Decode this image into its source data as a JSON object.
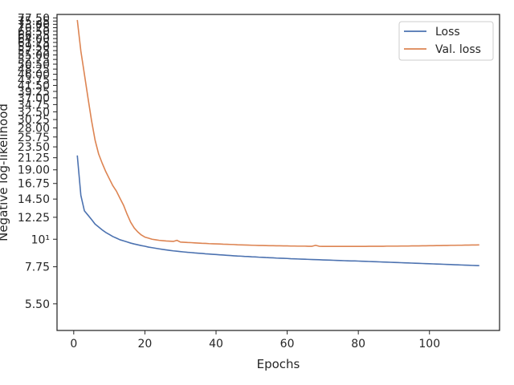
{
  "chart_data": {
    "type": "line",
    "xlabel": "Epochs",
    "ylabel": "Negative log-likelihood",
    "y_scale": "log",
    "xlim": [
      -4.7,
      119.7
    ],
    "ylim": [
      4.3,
      80.0
    ],
    "x_ticks": [
      0,
      20,
      40,
      60,
      80,
      100
    ],
    "x_tick_labels": [
      "0",
      "20",
      "40",
      "60",
      "80",
      "100"
    ],
    "y_ticks": [
      5.5,
      7.75,
      10,
      12.25,
      14.5,
      16.75,
      19.0,
      21.25,
      23.5,
      25.75,
      28.0,
      30.25,
      32.5,
      34.75,
      37.0,
      39.25,
      41.5,
      43.75,
      46.0,
      48.25,
      50.5,
      52.75,
      55.0,
      57.25,
      59.5,
      61.75,
      64.0,
      66.25,
      68.5,
      70.75,
      73.0,
      75.25,
      77.5
    ],
    "y_tick_labels": [
      "5.50",
      "7.75",
      "10¹",
      "12.25",
      "14.50",
      "16.75",
      "19.00",
      "21.25",
      "23.50",
      "25.75",
      "28.00",
      "30.25",
      "32.50",
      "34.75",
      "37.00",
      "39.25",
      "41.50",
      "43.75",
      "46.00",
      "48.25",
      "50.50",
      "52.75",
      "55.00",
      "57.25",
      "59.50",
      "61.75",
      "64.00",
      "66.25",
      "68.50",
      "70.75",
      "73.00",
      "75.25",
      "77.50"
    ],
    "grid": false,
    "legend_position": "top-right",
    "series": [
      {
        "name": "Loss",
        "color": "#4c72b0",
        "x": [
          1,
          2,
          3,
          4,
          5,
          6,
          7,
          8,
          9,
          10,
          11,
          12,
          13,
          14,
          15,
          16,
          17,
          18,
          19,
          20,
          21,
          22,
          23,
          24,
          25,
          26,
          27,
          28,
          29,
          30,
          31,
          32,
          33,
          34,
          35,
          36,
          37,
          38,
          39,
          40,
          41,
          42,
          43,
          44,
          45,
          46,
          47,
          48,
          49,
          50,
          51,
          52,
          53,
          54,
          55,
          56,
          57,
          58,
          59,
          60,
          61,
          62,
          63,
          64,
          65,
          66,
          67,
          68,
          69,
          70,
          71,
          72,
          73,
          74,
          75,
          76,
          77,
          78,
          79,
          80,
          81,
          82,
          83,
          84,
          85,
          86,
          87,
          88,
          89,
          90,
          91,
          92,
          93,
          94,
          95,
          96,
          97,
          98,
          99,
          100,
          101,
          102,
          103,
          104,
          105,
          106,
          107,
          108,
          109,
          110,
          111,
          112,
          113,
          114
        ],
        "y": [
          21.7,
          15.0,
          13.0,
          12.5,
          12.0,
          11.5,
          11.2,
          10.9,
          10.65,
          10.45,
          10.25,
          10.1,
          9.95,
          9.85,
          9.75,
          9.65,
          9.57,
          9.5,
          9.43,
          9.37,
          9.3,
          9.25,
          9.2,
          9.15,
          9.1,
          9.06,
          9.02,
          8.98,
          8.95,
          8.92,
          8.89,
          8.86,
          8.84,
          8.81,
          8.79,
          8.77,
          8.74,
          8.72,
          8.7,
          8.68,
          8.66,
          8.64,
          8.62,
          8.6,
          8.58,
          8.56,
          8.55,
          8.53,
          8.52,
          8.5,
          8.49,
          8.47,
          8.46,
          8.44,
          8.43,
          8.42,
          8.4,
          8.39,
          8.38,
          8.37,
          8.35,
          8.34,
          8.33,
          8.32,
          8.31,
          8.3,
          8.29,
          8.28,
          8.27,
          8.26,
          8.25,
          8.24,
          8.23,
          8.22,
          8.21,
          8.2,
          8.19,
          8.18,
          8.18,
          8.17,
          8.16,
          8.15,
          8.14,
          8.13,
          8.12,
          8.11,
          8.1,
          8.09,
          8.08,
          8.07,
          8.06,
          8.05,
          8.04,
          8.03,
          8.02,
          8.01,
          8.0,
          7.99,
          7.98,
          7.97,
          7.96,
          7.95,
          7.94,
          7.93,
          7.92,
          7.91,
          7.9,
          7.89,
          7.88,
          7.87,
          7.86,
          7.85,
          7.84,
          7.83
        ]
      },
      {
        "name": "Val. loss",
        "color": "#dd8452",
        "x": [
          1,
          2,
          3,
          4,
          5,
          6,
          7,
          8,
          9,
          10,
          11,
          12,
          13,
          14,
          15,
          16,
          17,
          18,
          19,
          20,
          21,
          22,
          23,
          24,
          25,
          26,
          27,
          28,
          29,
          30,
          31,
          32,
          33,
          34,
          35,
          36,
          37,
          38,
          39,
          40,
          41,
          42,
          43,
          44,
          45,
          46,
          47,
          48,
          49,
          50,
          51,
          52,
          53,
          54,
          55,
          56,
          57,
          58,
          59,
          60,
          61,
          62,
          63,
          64,
          65,
          66,
          67,
          68,
          69,
          70,
          71,
          72,
          73,
          74,
          75,
          76,
          77,
          78,
          79,
          80,
          81,
          82,
          83,
          84,
          85,
          86,
          87,
          88,
          89,
          90,
          91,
          92,
          93,
          94,
          95,
          96,
          97,
          98,
          99,
          100,
          101,
          102,
          103,
          104,
          105,
          106,
          107,
          108,
          109,
          110,
          111,
          112,
          113,
          114
        ],
        "y": [
          76.0,
          57.0,
          46.0,
          37.0,
          30.0,
          25.0,
          22.0,
          20.2,
          18.7,
          17.5,
          16.4,
          15.6,
          14.6,
          13.7,
          12.6,
          11.7,
          11.1,
          10.7,
          10.4,
          10.2,
          10.1,
          10.0,
          9.95,
          9.9,
          9.87,
          9.84,
          9.82,
          9.8,
          9.9,
          9.74,
          9.72,
          9.7,
          9.69,
          9.67,
          9.65,
          9.63,
          9.62,
          9.6,
          9.59,
          9.58,
          9.57,
          9.55,
          9.54,
          9.53,
          9.52,
          9.5,
          9.49,
          9.48,
          9.47,
          9.46,
          9.45,
          9.44,
          9.44,
          9.43,
          9.42,
          9.42,
          9.41,
          9.41,
          9.4,
          9.4,
          9.39,
          9.39,
          9.38,
          9.38,
          9.38,
          9.37,
          9.37,
          9.45,
          9.37,
          9.36,
          9.36,
          9.36,
          9.36,
          9.36,
          9.36,
          9.36,
          9.36,
          9.36,
          9.36,
          9.36,
          9.36,
          9.36,
          9.37,
          9.37,
          9.37,
          9.37,
          9.37,
          9.38,
          9.38,
          9.38,
          9.38,
          9.39,
          9.39,
          9.39,
          9.4,
          9.4,
          9.4,
          9.41,
          9.41,
          9.42,
          9.42,
          9.43,
          9.43,
          9.44,
          9.44,
          9.45,
          9.45,
          9.46,
          9.46,
          9.47,
          9.47,
          9.48,
          9.48,
          9.49
        ]
      }
    ]
  }
}
